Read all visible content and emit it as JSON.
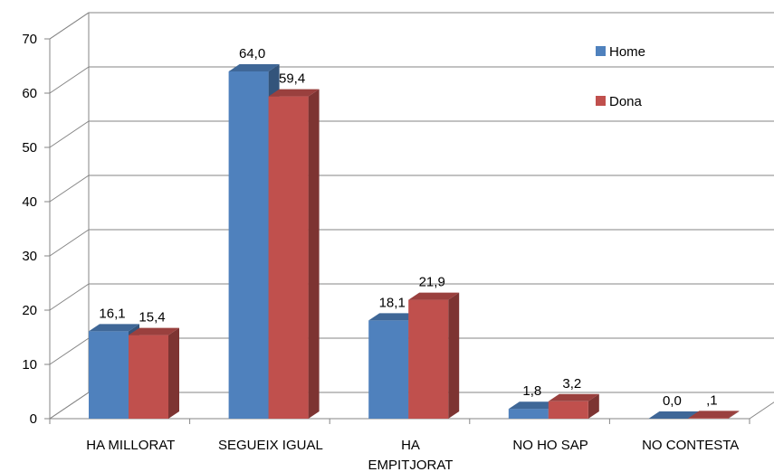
{
  "chart_data": {
    "type": "bar",
    "variant": "3d-clustered-column",
    "categories": [
      [
        "HA MILLORAT"
      ],
      [
        "SEGUEIX IGUAL"
      ],
      [
        "HA",
        "EMPITJORAT"
      ],
      [
        "NO HO SAP"
      ],
      [
        "NO CONTESTA"
      ]
    ],
    "series": [
      {
        "name": "Home",
        "color": "#4F81BD",
        "values": [
          16.1,
          64.0,
          18.1,
          1.8,
          0.0
        ],
        "labels": [
          "16,1",
          "64,0",
          "18,1",
          "1,8",
          "0,0"
        ]
      },
      {
        "name": "Dona",
        "color": "#C0504D",
        "values": [
          15.4,
          59.4,
          21.9,
          3.2,
          0.1
        ],
        "labels": [
          "15,4",
          "59,4",
          "21,9",
          "3,2",
          ",1"
        ]
      }
    ],
    "ylim": [
      0,
      70
    ],
    "yticks": [
      0,
      10,
      20,
      30,
      40,
      50,
      60,
      70
    ],
    "grid": true,
    "legend_position": "top-right"
  }
}
